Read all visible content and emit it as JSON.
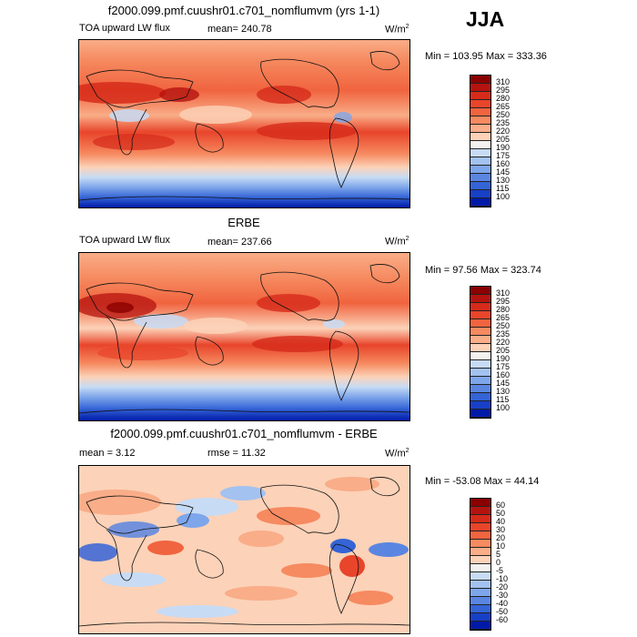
{
  "season": "JJA",
  "chart_data": [
    {
      "type": "heatmap",
      "title": "f2000.099.pmf.cuushr01.c701_nomflumvm (yrs 1-1)",
      "field_label": "TOA upward LW flux",
      "stat_text": "mean= 240.78",
      "units": "W/m",
      "units_sup": "2",
      "minmax_text": "Min = 103.95 Max = 333.36",
      "mean": 240.78,
      "min": 103.95,
      "max": 333.36,
      "colorbar_levels": [
        "310",
        "295",
        "280",
        "265",
        "250",
        "235",
        "220",
        "205",
        "190",
        "175",
        "160",
        "145",
        "130",
        "115",
        "100"
      ],
      "colorbar_colors": [
        "#8b0000",
        "#b5130f",
        "#d62b1a",
        "#e8452b",
        "#f0643f",
        "#f68a60",
        "#f9ad88",
        "#fcd2b8",
        "#f4f2f0",
        "#c7dbf4",
        "#a3c2f0",
        "#7ea6ea",
        "#5a86e1",
        "#3564d6",
        "#1740c6",
        "#001aa8"
      ]
    },
    {
      "type": "heatmap",
      "title": "ERBE",
      "field_label": "TOA upward LW flux",
      "stat_text": "mean= 237.66",
      "units": "W/m",
      "units_sup": "2",
      "minmax_text": "Min = 97.56 Max = 323.74",
      "mean": 237.66,
      "min": 97.56,
      "max": 323.74,
      "colorbar_levels": [
        "310",
        "295",
        "280",
        "265",
        "250",
        "235",
        "220",
        "205",
        "190",
        "175",
        "160",
        "145",
        "130",
        "115",
        "100"
      ],
      "colorbar_colors": [
        "#8b0000",
        "#b5130f",
        "#d62b1a",
        "#e8452b",
        "#f0643f",
        "#f68a60",
        "#f9ad88",
        "#fcd2b8",
        "#f4f2f0",
        "#c7dbf4",
        "#a3c2f0",
        "#7ea6ea",
        "#5a86e1",
        "#3564d6",
        "#1740c6",
        "#001aa8"
      ]
    },
    {
      "type": "heatmap",
      "title": "f2000.099.pmf.cuushr01.c701_nomflumvm - ERBE",
      "stat_text": "mean = 3.12",
      "stat2_text": "rmse = 11.32",
      "units": "W/m",
      "units_sup": "2",
      "minmax_text": "Min = -53.08 Max = 44.14",
      "mean": 3.12,
      "rmse": 11.32,
      "min": -53.08,
      "max": 44.14,
      "colorbar_levels": [
        "60",
        "50",
        "40",
        "30",
        "20",
        "10",
        "5",
        "0",
        "-5",
        "-10",
        "-20",
        "-30",
        "-40",
        "-50",
        "-60"
      ],
      "colorbar_colors": [
        "#8b0000",
        "#b5130f",
        "#d62b1a",
        "#e8452b",
        "#f0643f",
        "#f68a60",
        "#f9ad88",
        "#fcd2b8",
        "#f4f2f0",
        "#c7dbf4",
        "#a3c2f0",
        "#7ea6ea",
        "#5a86e1",
        "#3564d6",
        "#1740c6",
        "#001aa8"
      ]
    }
  ]
}
